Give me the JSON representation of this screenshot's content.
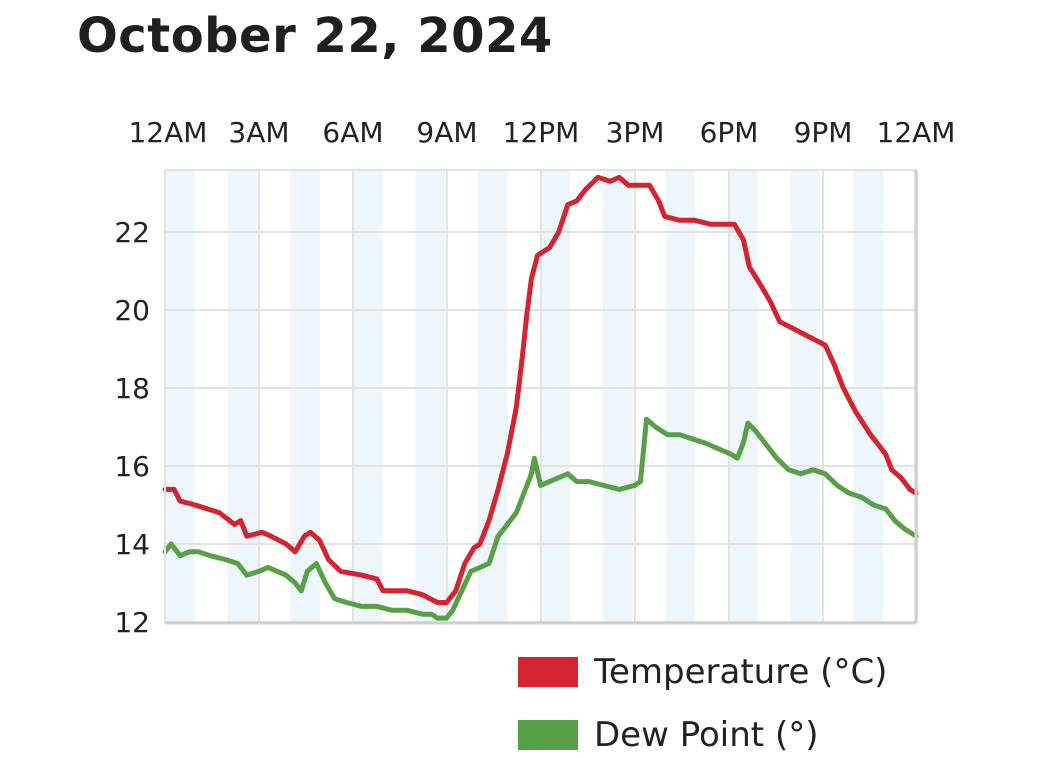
{
  "title": "October 22, 2024",
  "colors": {
    "temperature": "#d32430",
    "dew_point": "#58a047",
    "band": "#eef5fb",
    "grid": "#e3e3e3",
    "axis": "#cfcfcf"
  },
  "legend": [
    {
      "label": "Temperature (°C)",
      "color": "#d32430"
    },
    {
      "label": "Dew Point (°)",
      "color": "#58a047"
    }
  ],
  "chart_data": {
    "type": "line",
    "title": "October 22, 2024",
    "x_tick_labels": [
      "12AM",
      "3AM",
      "6AM",
      "9AM",
      "12PM",
      "3PM",
      "6PM",
      "9PM",
      "12AM"
    ],
    "y_ticks": [
      12,
      14,
      16,
      18,
      20,
      22
    ],
    "xlim_hours": [
      0,
      24
    ],
    "ylim": [
      12,
      23.5
    ],
    "grid": true,
    "legend_position": "bottom-right",
    "series": [
      {
        "name": "Temperature (°C)",
        "color": "#d32430",
        "points": [
          [
            0,
            15.4
          ],
          [
            0.3,
            15.4
          ],
          [
            0.5,
            15.1
          ],
          [
            1,
            15.0
          ],
          [
            1.4,
            14.9
          ],
          [
            1.8,
            14.8
          ],
          [
            2.3,
            14.5
          ],
          [
            2.5,
            14.6
          ],
          [
            2.7,
            14.2
          ],
          [
            3.2,
            14.3
          ],
          [
            3.5,
            14.2
          ],
          [
            4,
            14.0
          ],
          [
            4.3,
            13.8
          ],
          [
            4.6,
            14.2
          ],
          [
            4.8,
            14.3
          ],
          [
            5.1,
            14.1
          ],
          [
            5.4,
            13.6
          ],
          [
            5.8,
            13.3
          ],
          [
            6.5,
            13.2
          ],
          [
            7,
            13.1
          ],
          [
            7.2,
            12.8
          ],
          [
            8,
            12.8
          ],
          [
            8.5,
            12.7
          ],
          [
            9,
            12.5
          ],
          [
            9.3,
            12.5
          ],
          [
            9.6,
            12.8
          ],
          [
            9.9,
            13.5
          ],
          [
            10.2,
            13.9
          ],
          [
            10.4,
            14.0
          ],
          [
            10.7,
            14.6
          ],
          [
            11.0,
            15.4
          ],
          [
            11.3,
            16.3
          ],
          [
            11.6,
            17.5
          ],
          [
            11.8,
            18.8
          ],
          [
            11.95,
            19.9
          ],
          [
            12.1,
            20.8
          ],
          [
            12.3,
            21.4
          ],
          [
            12.7,
            21.6
          ],
          [
            13.0,
            22.0
          ],
          [
            13.3,
            22.7
          ],
          [
            13.6,
            22.8
          ],
          [
            13.9,
            23.1
          ],
          [
            14.3,
            23.4
          ],
          [
            14.7,
            23.3
          ],
          [
            15,
            23.4
          ],
          [
            15.3,
            23.2
          ],
          [
            16,
            23.2
          ],
          [
            16.3,
            22.8
          ],
          [
            16.5,
            22.4
          ],
          [
            17,
            22.3
          ],
          [
            17.5,
            22.3
          ],
          [
            18,
            22.2
          ],
          [
            18.5,
            22.2
          ],
          [
            18.8,
            22.2
          ],
          [
            19.1,
            21.8
          ],
          [
            19.3,
            21.1
          ],
          [
            19.7,
            20.6
          ],
          [
            20,
            20.2
          ],
          [
            20.3,
            19.7
          ],
          [
            20.8,
            19.5
          ],
          [
            21.3,
            19.3
          ],
          [
            21.8,
            19.1
          ],
          [
            22.1,
            18.6
          ],
          [
            22.4,
            18.0
          ],
          [
            22.8,
            17.4
          ],
          [
            23.3,
            16.8
          ],
          [
            23.6,
            16.5
          ],
          [
            23.8,
            16.3
          ],
          [
            24,
            15.9
          ],
          [
            24.3,
            15.7
          ],
          [
            24.6,
            15.4
          ],
          [
            24.8,
            15.3
          ]
        ]
      },
      {
        "name": "Dew Point (°)",
        "color": "#58a047",
        "points": [
          [
            0,
            13.8
          ],
          [
            0.2,
            14.0
          ],
          [
            0.5,
            13.7
          ],
          [
            0.8,
            13.8
          ],
          [
            1.1,
            13.8
          ],
          [
            1.5,
            13.7
          ],
          [
            2,
            13.6
          ],
          [
            2.4,
            13.5
          ],
          [
            2.7,
            13.2
          ],
          [
            3.1,
            13.3
          ],
          [
            3.4,
            13.4
          ],
          [
            3.7,
            13.3
          ],
          [
            4,
            13.2
          ],
          [
            4.3,
            13.0
          ],
          [
            4.5,
            12.8
          ],
          [
            4.7,
            13.3
          ],
          [
            5.0,
            13.5
          ],
          [
            5.3,
            13.0
          ],
          [
            5.6,
            12.6
          ],
          [
            6,
            12.5
          ],
          [
            6.5,
            12.4
          ],
          [
            7,
            12.4
          ],
          [
            7.5,
            12.3
          ],
          [
            8,
            12.3
          ],
          [
            8.5,
            12.2
          ],
          [
            8.8,
            12.2
          ],
          [
            9,
            12.1
          ],
          [
            9.3,
            12.1
          ],
          [
            9.5,
            12.3
          ],
          [
            9.8,
            12.8
          ],
          [
            10.1,
            13.3
          ],
          [
            10.4,
            13.4
          ],
          [
            10.7,
            13.5
          ],
          [
            11.0,
            14.2
          ],
          [
            11.3,
            14.5
          ],
          [
            11.6,
            14.8
          ],
          [
            11.9,
            15.4
          ],
          [
            12.1,
            15.8
          ],
          [
            12.2,
            16.2
          ],
          [
            12.4,
            15.5
          ],
          [
            12.7,
            15.6
          ],
          [
            13.0,
            15.7
          ],
          [
            13.3,
            15.8
          ],
          [
            13.6,
            15.6
          ],
          [
            14,
            15.6
          ],
          [
            14.5,
            15.5
          ],
          [
            15,
            15.4
          ],
          [
            15.5,
            15.5
          ],
          [
            15.7,
            15.6
          ],
          [
            15.8,
            16.4
          ],
          [
            15.9,
            17.2
          ],
          [
            16.2,
            17.0
          ],
          [
            16.6,
            16.8
          ],
          [
            17,
            16.8
          ],
          [
            17.4,
            16.7
          ],
          [
            17.8,
            16.6
          ],
          [
            18.1,
            16.5
          ],
          [
            18.4,
            16.4
          ],
          [
            18.7,
            16.3
          ],
          [
            18.9,
            16.2
          ],
          [
            19.1,
            16.6
          ],
          [
            19.25,
            17.1
          ],
          [
            19.5,
            16.9
          ],
          [
            19.8,
            16.6
          ],
          [
            20.2,
            16.2
          ],
          [
            20.6,
            15.9
          ],
          [
            21,
            15.8
          ],
          [
            21.4,
            15.9
          ],
          [
            21.8,
            15.8
          ],
          [
            22.2,
            15.5
          ],
          [
            22.6,
            15.3
          ],
          [
            23,
            15.2
          ],
          [
            23.4,
            15.0
          ],
          [
            23.8,
            14.9
          ],
          [
            24.1,
            14.6
          ],
          [
            24.4,
            14.4
          ],
          [
            24.6,
            14.3
          ],
          [
            24.8,
            14.2
          ]
        ]
      }
    ]
  }
}
